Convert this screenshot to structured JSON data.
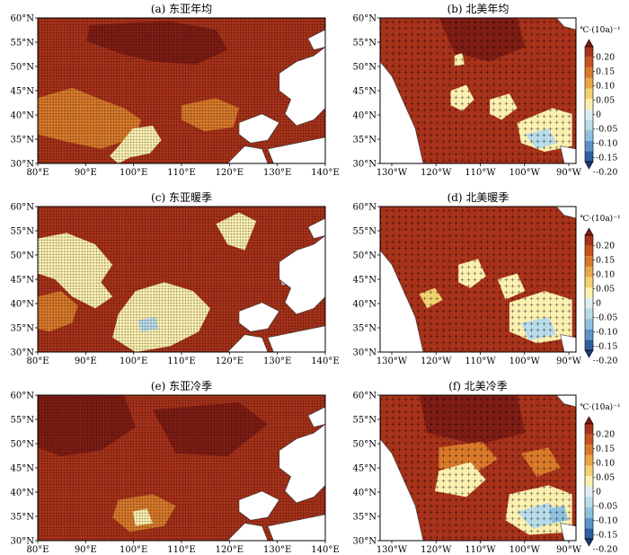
{
  "figure": {
    "colorbar": {
      "unit_label": "℃·(10a)⁻¹",
      "ticks": [
        "0.20",
        "0.15",
        "0.10",
        "0.05",
        "0",
        "-0.05",
        "-0.10",
        "-0.15",
        "-0.20"
      ],
      "colors": [
        "#7f1d14",
        "#a8321a",
        "#c8531f",
        "#d97a2a",
        "#e8a84a",
        "#f2d26e",
        "#fbf0b0",
        "#ddeef2",
        "#b8dcea",
        "#8fc1df",
        "#5b95c8",
        "#2f5f9f",
        "#1c3b78"
      ]
    },
    "east_asia_axes": {
      "x_ticks": [
        "80°E",
        "90°E",
        "100°E",
        "110°E",
        "120°E",
        "130°E",
        "140°E"
      ],
      "y_ticks": [
        "60°N",
        "55°N",
        "50°N",
        "45°N",
        "40°N",
        "35°N",
        "30°N"
      ]
    },
    "north_america_axes": {
      "x_ticks": [
        "130°W",
        "120°W",
        "110°W",
        "100°W",
        "90°W"
      ],
      "y_ticks": [
        "60°N",
        "55°N",
        "50°N",
        "45°N",
        "40°N",
        "35°N",
        "30°N"
      ]
    },
    "panels": [
      {
        "id": "a",
        "title": "(a) 东亚年均",
        "region": "east_asia",
        "scheme": "annual"
      },
      {
        "id": "b",
        "title": "(b) 北美年均",
        "region": "north_america",
        "scheme": "annual"
      },
      {
        "id": "c",
        "title": "(c) 东亚暖季",
        "region": "east_asia",
        "scheme": "warm"
      },
      {
        "id": "d",
        "title": "(d) 北美暖季",
        "region": "north_america",
        "scheme": "warm"
      },
      {
        "id": "e",
        "title": "(e) 东亚冷季",
        "region": "east_asia",
        "scheme": "cold"
      },
      {
        "id": "f",
        "title": "(f) 北美冷季",
        "region": "north_america",
        "scheme": "cold"
      }
    ]
  }
}
